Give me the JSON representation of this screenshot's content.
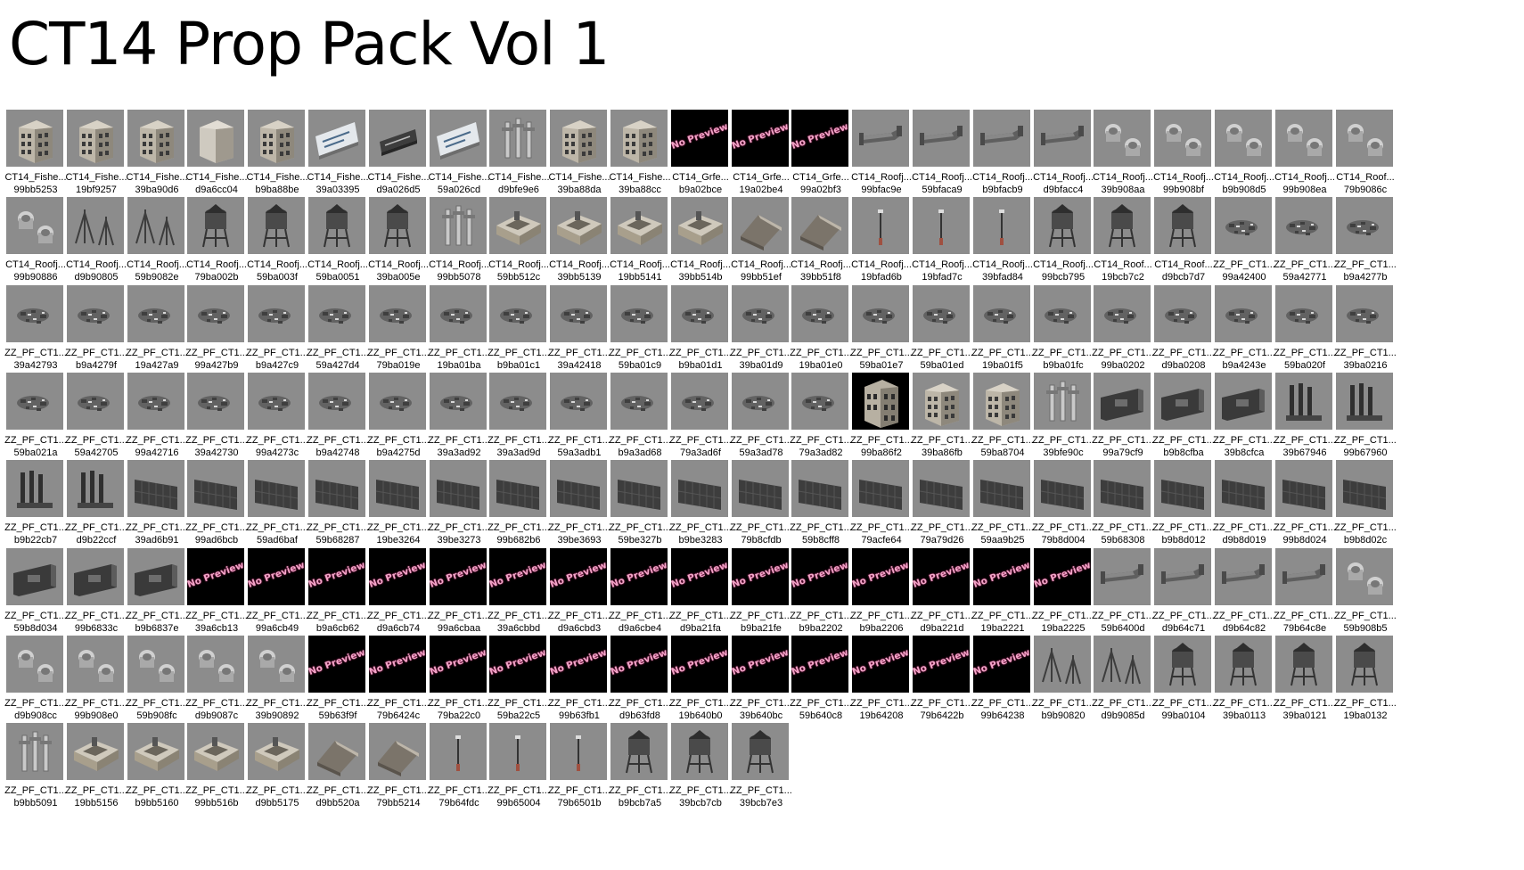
{
  "title": "CT14 Prop Pack Vol 1",
  "colors": {
    "thumbnail_bg": "#8c8c8c",
    "no_preview_bg": "#000000",
    "no_preview_text": "#f2a6c8"
  },
  "no_preview_label": "No Preview",
  "items": [
    {
      "name": "CT14_Fishe...",
      "hash": "99bb5253",
      "icon": "building"
    },
    {
      "name": "CT14_Fishe...",
      "hash": "19bf9257",
      "icon": "building"
    },
    {
      "name": "CT14_Fishe...",
      "hash": "39ba90d6",
      "icon": "building"
    },
    {
      "name": "CT14_Fishe...",
      "hash": "d9a6cc04",
      "icon": "building-plain"
    },
    {
      "name": "CT14_Fishe...",
      "hash": "b9ba88be",
      "icon": "building"
    },
    {
      "name": "CT14_Fishe...",
      "hash": "39a03395",
      "icon": "sign"
    },
    {
      "name": "CT14_Fishe...",
      "hash": "d9a026d5",
      "icon": "sign-dark"
    },
    {
      "name": "CT14_Fishe...",
      "hash": "59a026cd",
      "icon": "sign"
    },
    {
      "name": "CT14_Fishe...",
      "hash": "d9bfe9e6",
      "icon": "pipes"
    },
    {
      "name": "CT14_Fishe...",
      "hash": "39ba88da",
      "icon": "building"
    },
    {
      "name": "CT14_Fishe...",
      "hash": "39ba88cc",
      "icon": "building"
    },
    {
      "name": "CT14_Grfe...",
      "hash": "b9a02bce",
      "icon": "no-preview"
    },
    {
      "name": "CT14_Grfe...",
      "hash": "19a02be4",
      "icon": "no-preview"
    },
    {
      "name": "CT14_Grfe...",
      "hash": "99a02bf3",
      "icon": "no-preview"
    },
    {
      "name": "CT14_Roofj...",
      "hash": "99bfac9e",
      "icon": "duct"
    },
    {
      "name": "CT14_Roofj...",
      "hash": "59bfaca9",
      "icon": "duct"
    },
    {
      "name": "CT14_Roofj...",
      "hash": "b9bfacb9",
      "icon": "duct"
    },
    {
      "name": "CT14_Roofj...",
      "hash": "d9bfacc4",
      "icon": "duct"
    },
    {
      "name": "CT14_Roofj...",
      "hash": "39b908aa",
      "icon": "vent"
    },
    {
      "name": "CT14_Roofj...",
      "hash": "99b908bf",
      "icon": "vent"
    },
    {
      "name": "CT14_Roofj...",
      "hash": "b9b908d5",
      "icon": "vent"
    },
    {
      "name": "CT14_Roofj...",
      "hash": "99b908ea",
      "icon": "vent"
    },
    {
      "name": "CT14_Roof...",
      "hash": "79b9086c",
      "icon": "vent"
    },
    {
      "name": "CT14_Roofj...",
      "hash": "99b90886",
      "icon": "vent"
    },
    {
      "name": "CT14_Roofj...",
      "hash": "d9b90805",
      "icon": "antenna"
    },
    {
      "name": "CT14_Roofj...",
      "hash": "59b9082e",
      "icon": "antenna"
    },
    {
      "name": "CT14_Roofj...",
      "hash": "79ba002b",
      "icon": "tower"
    },
    {
      "name": "CT14_Roofj...",
      "hash": "59ba003f",
      "icon": "tower"
    },
    {
      "name": "CT14_Roofj...",
      "hash": "59ba0051",
      "icon": "tower"
    },
    {
      "name": "CT14_Roofj...",
      "hash": "39ba005e",
      "icon": "tower"
    },
    {
      "name": "CT14_Roofj...",
      "hash": "99bb5078",
      "icon": "pipes"
    },
    {
      "name": "CT14_Roofj...",
      "hash": "59bb512c",
      "icon": "roof-box"
    },
    {
      "name": "CT14_Roofj...",
      "hash": "39bb5139",
      "icon": "roof-box"
    },
    {
      "name": "CT14_Roofj...",
      "hash": "19bb5141",
      "icon": "roof-box"
    },
    {
      "name": "CT14_Roofj...",
      "hash": "39bb514b",
      "icon": "roof-box"
    },
    {
      "name": "CT14_Roofj...",
      "hash": "99bb51ef",
      "icon": "shed"
    },
    {
      "name": "CT14_Roofj...",
      "hash": "39bb51f8",
      "icon": "shed"
    },
    {
      "name": "CT14_Roofj...",
      "hash": "19bfad6b",
      "icon": "pole"
    },
    {
      "name": "CT14_Roofj...",
      "hash": "19bfad7c",
      "icon": "pole"
    },
    {
      "name": "CT14_Roofj...",
      "hash": "39bfad84",
      "icon": "pole"
    },
    {
      "name": "CT14_Roofj...",
      "hash": "99bcb795",
      "icon": "tower"
    },
    {
      "name": "CT14_Roof...",
      "hash": "19bcb7c2",
      "icon": "tower"
    },
    {
      "name": "CT14_Roof...",
      "hash": "d9bcb7d7",
      "icon": "tower"
    },
    {
      "name": "ZZ_PF_CT1...",
      "hash": "99a42400",
      "icon": "debris"
    },
    {
      "name": "ZZ_PF_CT1...",
      "hash": "59a42771",
      "icon": "debris"
    },
    {
      "name": "ZZ_PF_CT1...",
      "hash": "b9a4277b",
      "icon": "debris"
    },
    {
      "name": "ZZ_PF_CT1...",
      "hash": "39a42793",
      "icon": "debris"
    },
    {
      "name": "ZZ_PF_CT1...",
      "hash": "b9a4279f",
      "icon": "debris"
    },
    {
      "name": "ZZ_PF_CT1...",
      "hash": "19a427a9",
      "icon": "debris"
    },
    {
      "name": "ZZ_PF_CT1...",
      "hash": "99a427b9",
      "icon": "debris"
    },
    {
      "name": "ZZ_PF_CT1...",
      "hash": "b9a427c9",
      "icon": "debris"
    },
    {
      "name": "ZZ_PF_CT1...",
      "hash": "59a427d4",
      "icon": "debris"
    },
    {
      "name": "ZZ_PF_CT1...",
      "hash": "79ba019e",
      "icon": "debris"
    },
    {
      "name": "ZZ_PF_CT1...",
      "hash": "19ba01ba",
      "icon": "debris"
    },
    {
      "name": "ZZ_PF_CT1...",
      "hash": "b9ba01c1",
      "icon": "debris"
    },
    {
      "name": "ZZ_PF_CT1...",
      "hash": "39a42418",
      "icon": "debris"
    },
    {
      "name": "ZZ_PF_CT1...",
      "hash": "59ba01c9",
      "icon": "debris"
    },
    {
      "name": "ZZ_PF_CT1...",
      "hash": "b9ba01d1",
      "icon": "debris"
    },
    {
      "name": "ZZ_PF_CT1...",
      "hash": "39ba01d9",
      "icon": "debris"
    },
    {
      "name": "ZZ_PF_CT1...",
      "hash": "19ba01e0",
      "icon": "debris"
    },
    {
      "name": "ZZ_PF_CT1...",
      "hash": "59ba01e7",
      "icon": "debris"
    },
    {
      "name": "ZZ_PF_CT1...",
      "hash": "59ba01ed",
      "icon": "debris"
    },
    {
      "name": "ZZ_PF_CT1...",
      "hash": "19ba01f5",
      "icon": "debris"
    },
    {
      "name": "ZZ_PF_CT1...",
      "hash": "b9ba01fc",
      "icon": "debris"
    },
    {
      "name": "ZZ_PF_CT1...",
      "hash": "99ba0202",
      "icon": "debris"
    },
    {
      "name": "ZZ_PF_CT1...",
      "hash": "d9ba0208",
      "icon": "debris"
    },
    {
      "name": "ZZ_PF_CT1...",
      "hash": "b9a4243e",
      "icon": "debris"
    },
    {
      "name": "ZZ_PF_CT1...",
      "hash": "59ba020f",
      "icon": "debris"
    },
    {
      "name": "ZZ_PF_CT1...",
      "hash": "39ba0216",
      "icon": "debris"
    },
    {
      "name": "ZZ_PF_CT1...",
      "hash": "59ba021a",
      "icon": "debris"
    },
    {
      "name": "ZZ_PF_CT1...",
      "hash": "59a42705",
      "icon": "debris"
    },
    {
      "name": "ZZ_PF_CT1...",
      "hash": "99a42716",
      "icon": "debris"
    },
    {
      "name": "ZZ_PF_CT1...",
      "hash": "39a42730",
      "icon": "debris"
    },
    {
      "name": "ZZ_PF_CT1...",
      "hash": "99a4273c",
      "icon": "debris"
    },
    {
      "name": "ZZ_PF_CT1...",
      "hash": "b9a42748",
      "icon": "debris"
    },
    {
      "name": "ZZ_PF_CT1...",
      "hash": "b9a4275d",
      "icon": "debris"
    },
    {
      "name": "ZZ_PF_CT1...",
      "hash": "39a3ad92",
      "icon": "debris"
    },
    {
      "name": "ZZ_PF_CT1...",
      "hash": "39a3ad9d",
      "icon": "debris"
    },
    {
      "name": "ZZ_PF_CT1...",
      "hash": "59a3adb1",
      "icon": "debris"
    },
    {
      "name": "ZZ_PF_CT1...",
      "hash": "b9a3ad68",
      "icon": "debris"
    },
    {
      "name": "ZZ_PF_CT1...",
      "hash": "79a3ad6f",
      "icon": "debris"
    },
    {
      "name": "ZZ_PF_CT1...",
      "hash": "59a3ad78",
      "icon": "debris"
    },
    {
      "name": "ZZ_PF_CT1...",
      "hash": "79a3ad82",
      "icon": "debris"
    },
    {
      "name": "ZZ_PF_CT1...",
      "hash": "99ba86f2",
      "icon": "building-dark"
    },
    {
      "name": "ZZ_PF_CT1...",
      "hash": "39ba86fb",
      "icon": "building"
    },
    {
      "name": "ZZ_PF_CT1...",
      "hash": "59ba8704",
      "icon": "building"
    },
    {
      "name": "ZZ_PF_CT1...",
      "hash": "39bfe90c",
      "icon": "pipes"
    },
    {
      "name": "ZZ_PF_CT1...",
      "hash": "99a79cf9",
      "icon": "wall"
    },
    {
      "name": "ZZ_PF_CT1...",
      "hash": "b9b8cfba",
      "icon": "wall"
    },
    {
      "name": "ZZ_PF_CT1...",
      "hash": "39b8cfca",
      "icon": "wall"
    },
    {
      "name": "ZZ_PF_CT1...",
      "hash": "39b67946",
      "icon": "pipes-dark"
    },
    {
      "name": "ZZ_PF_CT1...",
      "hash": "99b67960",
      "icon": "pipes-dark"
    },
    {
      "name": "ZZ_PF_CT1...",
      "hash": "b9b22cb7",
      "icon": "pipes-dark"
    },
    {
      "name": "ZZ_PF_CT1...",
      "hash": "d9b22ccf",
      "icon": "pipes-dark"
    },
    {
      "name": "ZZ_PF_CT1...",
      "hash": "39ad6b91",
      "icon": "panel"
    },
    {
      "name": "ZZ_PF_CT1...",
      "hash": "99ad6bcb",
      "icon": "panel"
    },
    {
      "name": "ZZ_PF_CT1...",
      "hash": "59ad6baf",
      "icon": "panel"
    },
    {
      "name": "ZZ_PF_CT1...",
      "hash": "59b68287",
      "icon": "panel"
    },
    {
      "name": "ZZ_PF_CT1...",
      "hash": "19be3264",
      "icon": "panel"
    },
    {
      "name": "ZZ_PF_CT1...",
      "hash": "39be3273",
      "icon": "panel"
    },
    {
      "name": "ZZ_PF_CT1...",
      "hash": "99b682b6",
      "icon": "panel"
    },
    {
      "name": "ZZ_PF_CT1...",
      "hash": "39be3693",
      "icon": "panel"
    },
    {
      "name": "ZZ_PF_CT1...",
      "hash": "59be327b",
      "icon": "panel"
    },
    {
      "name": "ZZ_PF_CT1...",
      "hash": "b9be3283",
      "icon": "panel"
    },
    {
      "name": "ZZ_PF_CT1...",
      "hash": "79b8cfdb",
      "icon": "panel"
    },
    {
      "name": "ZZ_PF_CT1...",
      "hash": "59b8cff8",
      "icon": "panel"
    },
    {
      "name": "ZZ_PF_CT1...",
      "hash": "79acfe64",
      "icon": "panel"
    },
    {
      "name": "ZZ_PF_CT1...",
      "hash": "79a79d26",
      "icon": "panel"
    },
    {
      "name": "ZZ_PF_CT1...",
      "hash": "59aa9b25",
      "icon": "panel"
    },
    {
      "name": "ZZ_PF_CT1...",
      "hash": "79b8d004",
      "icon": "panel"
    },
    {
      "name": "ZZ_PF_CT1...",
      "hash": "59b68308",
      "icon": "panel"
    },
    {
      "name": "ZZ_PF_CT1...",
      "hash": "b9b8d012",
      "icon": "panel"
    },
    {
      "name": "ZZ_PF_CT1...",
      "hash": "d9b8d019",
      "icon": "panel"
    },
    {
      "name": "ZZ_PF_CT1...",
      "hash": "99b8d024",
      "icon": "panel"
    },
    {
      "name": "ZZ_PF_CT1...",
      "hash": "b9b8d02c",
      "icon": "panel"
    },
    {
      "name": "ZZ_PF_CT1...",
      "hash": "59b8d034",
      "icon": "wall"
    },
    {
      "name": "ZZ_PF_CT1...",
      "hash": "99b6833c",
      "icon": "wall"
    },
    {
      "name": "ZZ_PF_CT1...",
      "hash": "b9b6837e",
      "icon": "wall"
    },
    {
      "name": "ZZ_PF_CT1...",
      "hash": "39a6cb13",
      "icon": "no-preview"
    },
    {
      "name": "ZZ_PF_CT1...",
      "hash": "99a6cb49",
      "icon": "no-preview"
    },
    {
      "name": "ZZ_PF_CT1...",
      "hash": "b9a6cb62",
      "icon": "no-preview"
    },
    {
      "name": "ZZ_PF_CT1...",
      "hash": "d9a6cb74",
      "icon": "no-preview"
    },
    {
      "name": "ZZ_PF_CT1...",
      "hash": "99a6cbaa",
      "icon": "no-preview"
    },
    {
      "name": "ZZ_PF_CT1...",
      "hash": "39a6cbbd",
      "icon": "no-preview"
    },
    {
      "name": "ZZ_PF_CT1...",
      "hash": "d9a6cbd3",
      "icon": "no-preview"
    },
    {
      "name": "ZZ_PF_CT1...",
      "hash": "d9a6cbe4",
      "icon": "no-preview"
    },
    {
      "name": "ZZ_PF_CT1...",
      "hash": "d9ba21fa",
      "icon": "no-preview"
    },
    {
      "name": "ZZ_PF_CT1...",
      "hash": "b9ba21fe",
      "icon": "no-preview"
    },
    {
      "name": "ZZ_PF_CT1...",
      "hash": "b9ba2202",
      "icon": "no-preview"
    },
    {
      "name": "ZZ_PF_CT1...",
      "hash": "b9ba2206",
      "icon": "no-preview"
    },
    {
      "name": "ZZ_PF_CT1...",
      "hash": "d9ba221d",
      "icon": "no-preview"
    },
    {
      "name": "ZZ_PF_CT1...",
      "hash": "19ba2221",
      "icon": "no-preview"
    },
    {
      "name": "ZZ_PF_CT1...",
      "hash": "19ba2225",
      "icon": "no-preview"
    },
    {
      "name": "ZZ_PF_CT1...",
      "hash": "59b6400d",
      "icon": "duct"
    },
    {
      "name": "ZZ_PF_CT1...",
      "hash": "d9b64c71",
      "icon": "duct"
    },
    {
      "name": "ZZ_PF_CT1...",
      "hash": "d9b64c82",
      "icon": "duct"
    },
    {
      "name": "ZZ_PF_CT1...",
      "hash": "79b64c8e",
      "icon": "duct"
    },
    {
      "name": "ZZ_PF_CT1...",
      "hash": "59b908b5",
      "icon": "vent"
    },
    {
      "name": "ZZ_PF_CT1...",
      "hash": "d9b908cc",
      "icon": "vent"
    },
    {
      "name": "ZZ_PF_CT1...",
      "hash": "99b908e0",
      "icon": "vent"
    },
    {
      "name": "ZZ_PF_CT1...",
      "hash": "59b908fc",
      "icon": "vent"
    },
    {
      "name": "ZZ_PF_CT1...",
      "hash": "d9b9087c",
      "icon": "vent"
    },
    {
      "name": "ZZ_PF_CT1...",
      "hash": "39b90892",
      "icon": "vent"
    },
    {
      "name": "ZZ_PF_CT1...",
      "hash": "59b63f9f",
      "icon": "no-preview"
    },
    {
      "name": "ZZ_PF_CT1...",
      "hash": "79b6424c",
      "icon": "no-preview"
    },
    {
      "name": "ZZ_PF_CT1...",
      "hash": "79ba22c0",
      "icon": "no-preview"
    },
    {
      "name": "ZZ_PF_CT1...",
      "hash": "59ba22c5",
      "icon": "no-preview"
    },
    {
      "name": "ZZ_PF_CT1...",
      "hash": "99b63fb1",
      "icon": "no-preview"
    },
    {
      "name": "ZZ_PF_CT1...",
      "hash": "d9b63fd8",
      "icon": "no-preview"
    },
    {
      "name": "ZZ_PF_CT1...",
      "hash": "19b640b0",
      "icon": "no-preview"
    },
    {
      "name": "ZZ_PF_CT1...",
      "hash": "39b640bc",
      "icon": "no-preview"
    },
    {
      "name": "ZZ_PF_CT1...",
      "hash": "59b640c8",
      "icon": "no-preview"
    },
    {
      "name": "ZZ_PF_CT1...",
      "hash": "19b64208",
      "icon": "no-preview"
    },
    {
      "name": "ZZ_PF_CT1...",
      "hash": "79b6422b",
      "icon": "no-preview"
    },
    {
      "name": "ZZ_PF_CT1...",
      "hash": "99b64238",
      "icon": "no-preview"
    },
    {
      "name": "ZZ_PF_CT1...",
      "hash": "b9b90820",
      "icon": "antenna"
    },
    {
      "name": "ZZ_PF_CT1...",
      "hash": "d9b9085d",
      "icon": "antenna"
    },
    {
      "name": "ZZ_PF_CT1...",
      "hash": "99ba0104",
      "icon": "tower"
    },
    {
      "name": "ZZ_PF_CT1...",
      "hash": "39ba0113",
      "icon": "tower"
    },
    {
      "name": "ZZ_PF_CT1...",
      "hash": "39ba0121",
      "icon": "tower"
    },
    {
      "name": "ZZ_PF_CT1...",
      "hash": "19ba0132",
      "icon": "tower"
    },
    {
      "name": "ZZ_PF_CT1...",
      "hash": "b9bb5091",
      "icon": "pipes"
    },
    {
      "name": "ZZ_PF_CT1...",
      "hash": "19bb5156",
      "icon": "roof-box"
    },
    {
      "name": "ZZ_PF_CT1...",
      "hash": "b9bb5160",
      "icon": "roof-box"
    },
    {
      "name": "ZZ_PF_CT1...",
      "hash": "99bb516b",
      "icon": "roof-box"
    },
    {
      "name": "ZZ_PF_CT1...",
      "hash": "d9bb5175",
      "icon": "roof-box"
    },
    {
      "name": "ZZ_PF_CT1...",
      "hash": "d9bb520a",
      "icon": "shed"
    },
    {
      "name": "ZZ_PF_CT1...",
      "hash": "79bb5214",
      "icon": "shed"
    },
    {
      "name": "ZZ_PF_CT1...",
      "hash": "79b64fdc",
      "icon": "pole"
    },
    {
      "name": "ZZ_PF_CT1...",
      "hash": "99b65004",
      "icon": "pole"
    },
    {
      "name": "ZZ_PF_CT1...",
      "hash": "79b6501b",
      "icon": "pole"
    },
    {
      "name": "ZZ_PF_CT1...",
      "hash": "b9bcb7a5",
      "icon": "tower"
    },
    {
      "name": "ZZ_PF_CT1...",
      "hash": "39bcb7cb",
      "icon": "tower"
    },
    {
      "name": "ZZ_PF_CT1...",
      "hash": "39bcb7e3",
      "icon": "tower"
    }
  ]
}
